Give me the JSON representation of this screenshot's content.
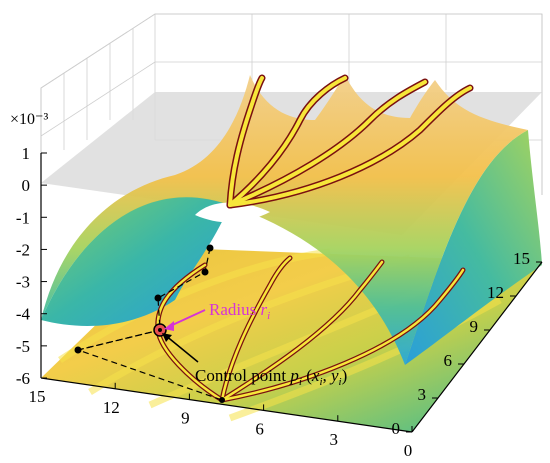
{
  "chart_data": {
    "type": "surface",
    "z_axis": {
      "exponent_label": "×10⁻³",
      "ticks": [
        "1",
        "0",
        "-1",
        "-2",
        "-3",
        "-4",
        "-5",
        "-6"
      ],
      "values": [
        1,
        0,
        -1,
        -2,
        -3,
        -4,
        -5,
        -6
      ],
      "range": [
        -6,
        1
      ]
    },
    "x_axis": {
      "ticks": [
        "15",
        "12",
        "9",
        "6",
        "3",
        "0"
      ],
      "values": [
        15,
        12,
        9,
        6,
        3,
        0
      ],
      "range": [
        0,
        15
      ]
    },
    "y_axis": {
      "ticks": [
        "0",
        "3",
        "6",
        "9",
        "12",
        "15"
      ],
      "values": [
        0,
        3,
        6,
        9,
        12,
        15
      ],
      "range": [
        0,
        15
      ]
    },
    "grid": true,
    "annotations": {
      "radius": {
        "text": "Radius ",
        "symbol": "r",
        "subscript": "i",
        "color": "#d633d6"
      },
      "control_point": {
        "text": "Control point ",
        "p": "p",
        "p_sub": "i",
        "open": " (",
        "x": "x",
        "x_sub": "i",
        "comma": ", ",
        "y": "y",
        "y_sub": "i",
        "close": ")"
      }
    },
    "colors": {
      "surface_high": "#f5c84a",
      "surface_mid": "#9bd36a",
      "surface_low": "#2fb3c9",
      "channel": "#f6e63a",
      "channel_edge": "#7a1010",
      "top_plane": "#d9d9d9"
    }
  }
}
